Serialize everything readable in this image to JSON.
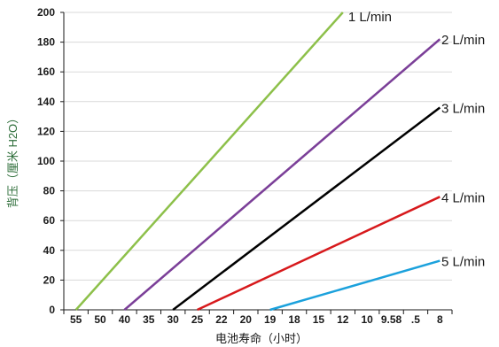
{
  "chart_data": {
    "type": "line",
    "xlabel": "电池寿命（小时）",
    "ylabel": "背压（厘米 H2O）",
    "x_tick_labels": [
      "55",
      "50",
      "40",
      "35",
      "30",
      "25",
      "22",
      "20",
      "19",
      "18",
      "15",
      "12",
      "10",
      "9.58",
      ".5",
      "8"
    ],
    "y_ticks": [
      0,
      20,
      40,
      60,
      80,
      100,
      120,
      140,
      160,
      180,
      200
    ],
    "ylim": [
      0,
      200
    ],
    "grid": "horizontal",
    "series": [
      {
        "name": "1 L/min",
        "color": "#8dc04a",
        "x": [
          55,
          12
        ],
        "y": [
          0,
          200
        ]
      },
      {
        "name": "2 L/min",
        "color": "#7b3f98",
        "x": [
          40,
          8
        ],
        "y": [
          0,
          182
        ]
      },
      {
        "name": "3 L/min",
        "color": "#000000",
        "x": [
          30,
          8
        ],
        "y": [
          0,
          136
        ]
      },
      {
        "name": "4 L/min",
        "color": "#d7191c",
        "x": [
          25,
          8
        ],
        "y": [
          0,
          76
        ]
      },
      {
        "name": "5 L/min",
        "color": "#1ba1dc",
        "x": [
          19,
          8
        ],
        "y": [
          0,
          33
        ]
      }
    ]
  }
}
